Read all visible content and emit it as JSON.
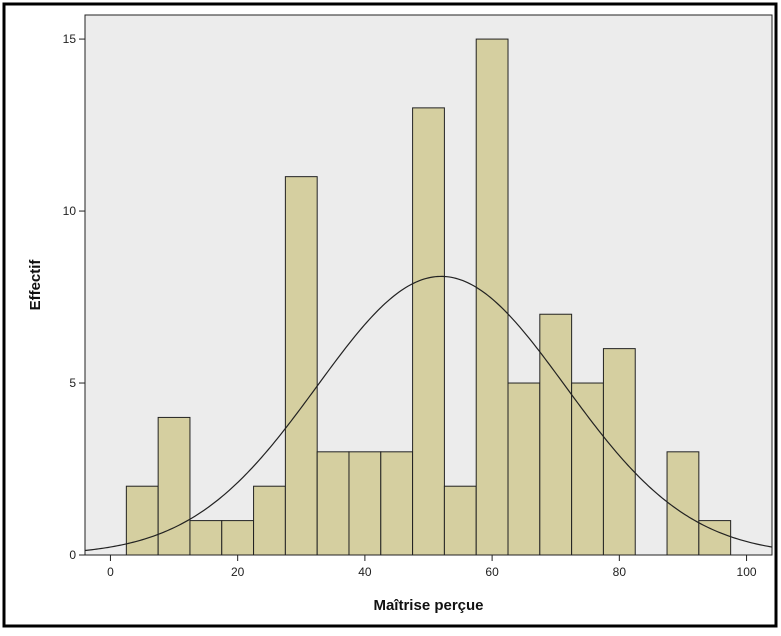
{
  "chart_data": {
    "type": "bar",
    "xlabel": "Maîtrise perçue",
    "ylabel": "Effectif",
    "xlim": [
      -4,
      104
    ],
    "ylim": [
      0,
      15.7
    ],
    "x_ticks": [
      0,
      20,
      40,
      60,
      80,
      100
    ],
    "y_ticks": [
      0,
      5,
      10,
      15
    ],
    "grid": false,
    "bins": [
      {
        "start": 2.5,
        "end": 7.5,
        "count": 2
      },
      {
        "start": 7.5,
        "end": 12.5,
        "count": 4
      },
      {
        "start": 12.5,
        "end": 17.5,
        "count": 1
      },
      {
        "start": 17.5,
        "end": 22.5,
        "count": 1
      },
      {
        "start": 22.5,
        "end": 27.5,
        "count": 2
      },
      {
        "start": 27.5,
        "end": 32.5,
        "count": 11
      },
      {
        "start": 32.5,
        "end": 37.5,
        "count": 3
      },
      {
        "start": 37.5,
        "end": 42.5,
        "count": 3
      },
      {
        "start": 42.5,
        "end": 47.5,
        "count": 3
      },
      {
        "start": 47.5,
        "end": 52.5,
        "count": 13
      },
      {
        "start": 52.5,
        "end": 57.5,
        "count": 2
      },
      {
        "start": 57.5,
        "end": 62.5,
        "count": 15
      },
      {
        "start": 62.5,
        "end": 67.5,
        "count": 5
      },
      {
        "start": 67.5,
        "end": 72.5,
        "count": 7
      },
      {
        "start": 72.5,
        "end": 77.5,
        "count": 5
      },
      {
        "start": 77.5,
        "end": 82.5,
        "count": 6
      },
      {
        "start": 82.5,
        "end": 87.5,
        "count": 0
      },
      {
        "start": 87.5,
        "end": 92.5,
        "count": 3
      },
      {
        "start": 92.5,
        "end": 97.5,
        "count": 1
      }
    ],
    "normal_curve": {
      "mean": 52,
      "peak": 8.1,
      "sd": 19.5
    },
    "colors": {
      "bar_fill": "#d5cfa0",
      "bar_stroke": "#222222",
      "plot_background": "#ececec",
      "curve": "#222222"
    }
  }
}
